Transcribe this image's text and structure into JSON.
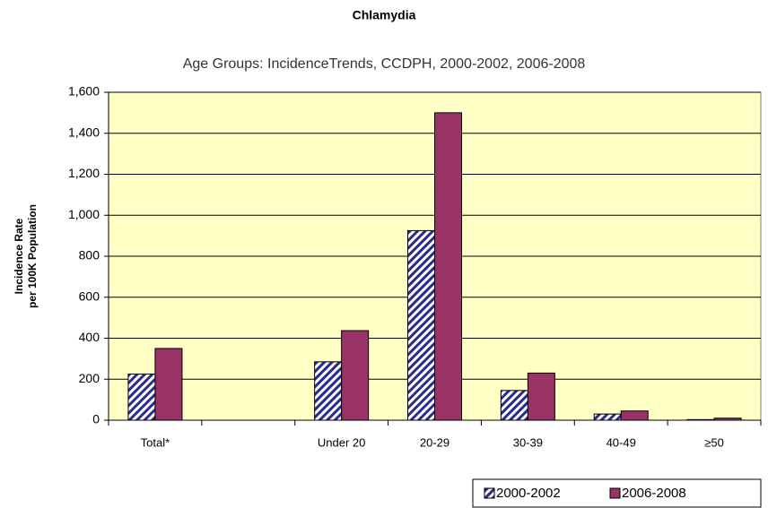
{
  "chart_data": {
    "type": "bar",
    "title": "Chlamydia",
    "subtitle": "Age Groups: IncidenceTrends, CCDPH, 2000-2002, 2006-2008",
    "ylabel": [
      "Incidence Rate",
      "per 100K Population"
    ],
    "categories": [
      "Total*",
      null,
      "Under 20",
      "20-29",
      "30-39",
      "40-49",
      "≥50"
    ],
    "series": [
      {
        "name": "2000-2002",
        "color": "#2b2b8c",
        "pattern": "hatch",
        "values": [
          225,
          null,
          285,
          925,
          145,
          30,
          3
        ]
      },
      {
        "name": "2006-2008",
        "color": "#993366",
        "values": [
          350,
          null,
          437,
          1500,
          230,
          45,
          10
        ]
      }
    ],
    "ylim": [
      0,
      1600
    ],
    "yticks": [
      0,
      200,
      400,
      600,
      800,
      {
        "value": 1000,
        "label": "1,000"
      },
      {
        "value": 1200,
        "label": "1,200"
      },
      {
        "value": 1400,
        "label": "1,400"
      },
      {
        "value": 1600,
        "label": "1,600"
      }
    ],
    "grid": true,
    "legend": "bottom-right",
    "background": "#ffffc6"
  }
}
